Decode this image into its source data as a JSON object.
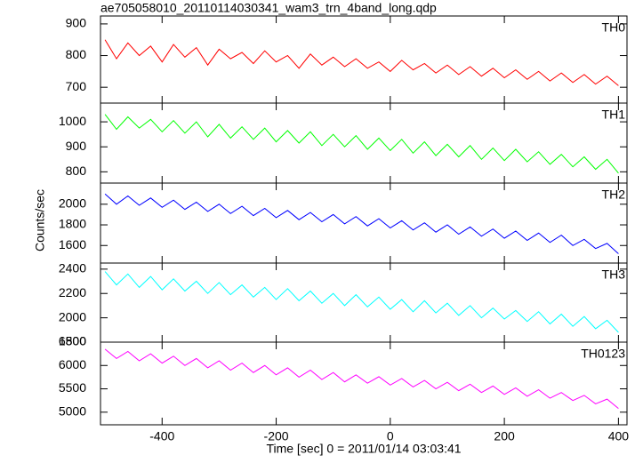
{
  "title": "ae705058010_20110114030341_wam3_trn_4band_long.qdp",
  "ylabel": "Counts/sec",
  "xlabel": "Time [sec] 0 = 2011/01/14 03:03:41",
  "xlim": [
    -508,
    415
  ],
  "xticks": [
    -400,
    -200,
    0,
    200,
    400
  ],
  "x": [
    -500,
    -480,
    -460,
    -440,
    -420,
    -400,
    -380,
    -360,
    -340,
    -320,
    -300,
    -280,
    -260,
    -240,
    -220,
    -200,
    -180,
    -160,
    -140,
    -120,
    -100,
    -80,
    -60,
    -40,
    -20,
    0,
    20,
    40,
    60,
    80,
    100,
    120,
    140,
    160,
    180,
    200,
    220,
    240,
    260,
    280,
    300,
    320,
    340,
    360,
    380,
    400
  ],
  "chart_data": [
    {
      "type": "line",
      "ylim": [
        650,
        925
      ],
      "yticks": [
        700,
        800,
        900
      ],
      "series": [
        {
          "name": "TH0",
          "color": "#ff0000",
          "values": [
            850,
            790,
            840,
            800,
            830,
            780,
            835,
            795,
            825,
            770,
            820,
            790,
            810,
            775,
            815,
            780,
            800,
            760,
            805,
            770,
            795,
            765,
            790,
            760,
            780,
            750,
            785,
            755,
            775,
            745,
            770,
            740,
            765,
            735,
            760,
            730,
            755,
            725,
            750,
            720,
            745,
            715,
            740,
            710,
            735,
            705
          ]
        }
      ]
    },
    {
      "type": "line",
      "ylim": [
        755,
        1075
      ],
      "yticks": [
        800,
        900,
        1000
      ],
      "series": [
        {
          "name": "TH1",
          "color": "#00ff00",
          "values": [
            1030,
            970,
            1020,
            975,
            1010,
            960,
            1005,
            955,
            1000,
            940,
            990,
            935,
            980,
            930,
            975,
            920,
            965,
            915,
            960,
            905,
            950,
            900,
            945,
            890,
            935,
            885,
            930,
            875,
            920,
            865,
            910,
            860,
            905,
            850,
            895,
            845,
            890,
            840,
            880,
            830,
            870,
            820,
            860,
            810,
            850,
            795
          ]
        }
      ]
    },
    {
      "type": "line",
      "ylim": [
        1430,
        2205
      ],
      "yticks": [
        1600,
        1800,
        2000
      ],
      "series": [
        {
          "name": "TH2",
          "color": "#0000ff",
          "values": [
            2100,
            2000,
            2080,
            1990,
            2060,
            1970,
            2040,
            1950,
            2020,
            1930,
            2000,
            1910,
            1980,
            1890,
            1960,
            1870,
            1940,
            1850,
            1920,
            1830,
            1900,
            1810,
            1880,
            1790,
            1860,
            1770,
            1840,
            1750,
            1820,
            1730,
            1800,
            1710,
            1780,
            1690,
            1760,
            1670,
            1740,
            1650,
            1720,
            1630,
            1700,
            1600,
            1660,
            1570,
            1620,
            1520
          ]
        }
      ]
    },
    {
      "type": "line",
      "ylim": [
        1800,
        2450
      ],
      "yticks": [
        1800,
        2000,
        2200,
        2400
      ],
      "series": [
        {
          "name": "TH3",
          "color": "#00ffff",
          "values": [
            2380,
            2270,
            2360,
            2250,
            2340,
            2230,
            2320,
            2220,
            2300,
            2200,
            2290,
            2190,
            2270,
            2170,
            2250,
            2150,
            2240,
            2140,
            2220,
            2120,
            2200,
            2100,
            2190,
            2090,
            2170,
            2070,
            2150,
            2050,
            2140,
            2040,
            2120,
            2020,
            2100,
            2000,
            2080,
            1990,
            2060,
            1970,
            2050,
            1950,
            2030,
            1930,
            2010,
            1910,
            1980,
            1880
          ]
        }
      ]
    },
    {
      "type": "line",
      "ylim": [
        4730,
        6500
      ],
      "yticks": [
        5000,
        5500,
        6000,
        6500
      ],
      "series": [
        {
          "name": "TH0123",
          "color": "#ff00ff",
          "values": [
            6350,
            6150,
            6300,
            6100,
            6250,
            6050,
            6200,
            6000,
            6150,
            5950,
            6100,
            5900,
            6050,
            5850,
            6000,
            5800,
            5950,
            5750,
            5900,
            5700,
            5850,
            5650,
            5800,
            5620,
            5760,
            5580,
            5720,
            5540,
            5680,
            5500,
            5640,
            5460,
            5600,
            5420,
            5560,
            5380,
            5520,
            5340,
            5480,
            5300,
            5420,
            5250,
            5360,
            5180,
            5280,
            5080
          ]
        }
      ]
    }
  ]
}
